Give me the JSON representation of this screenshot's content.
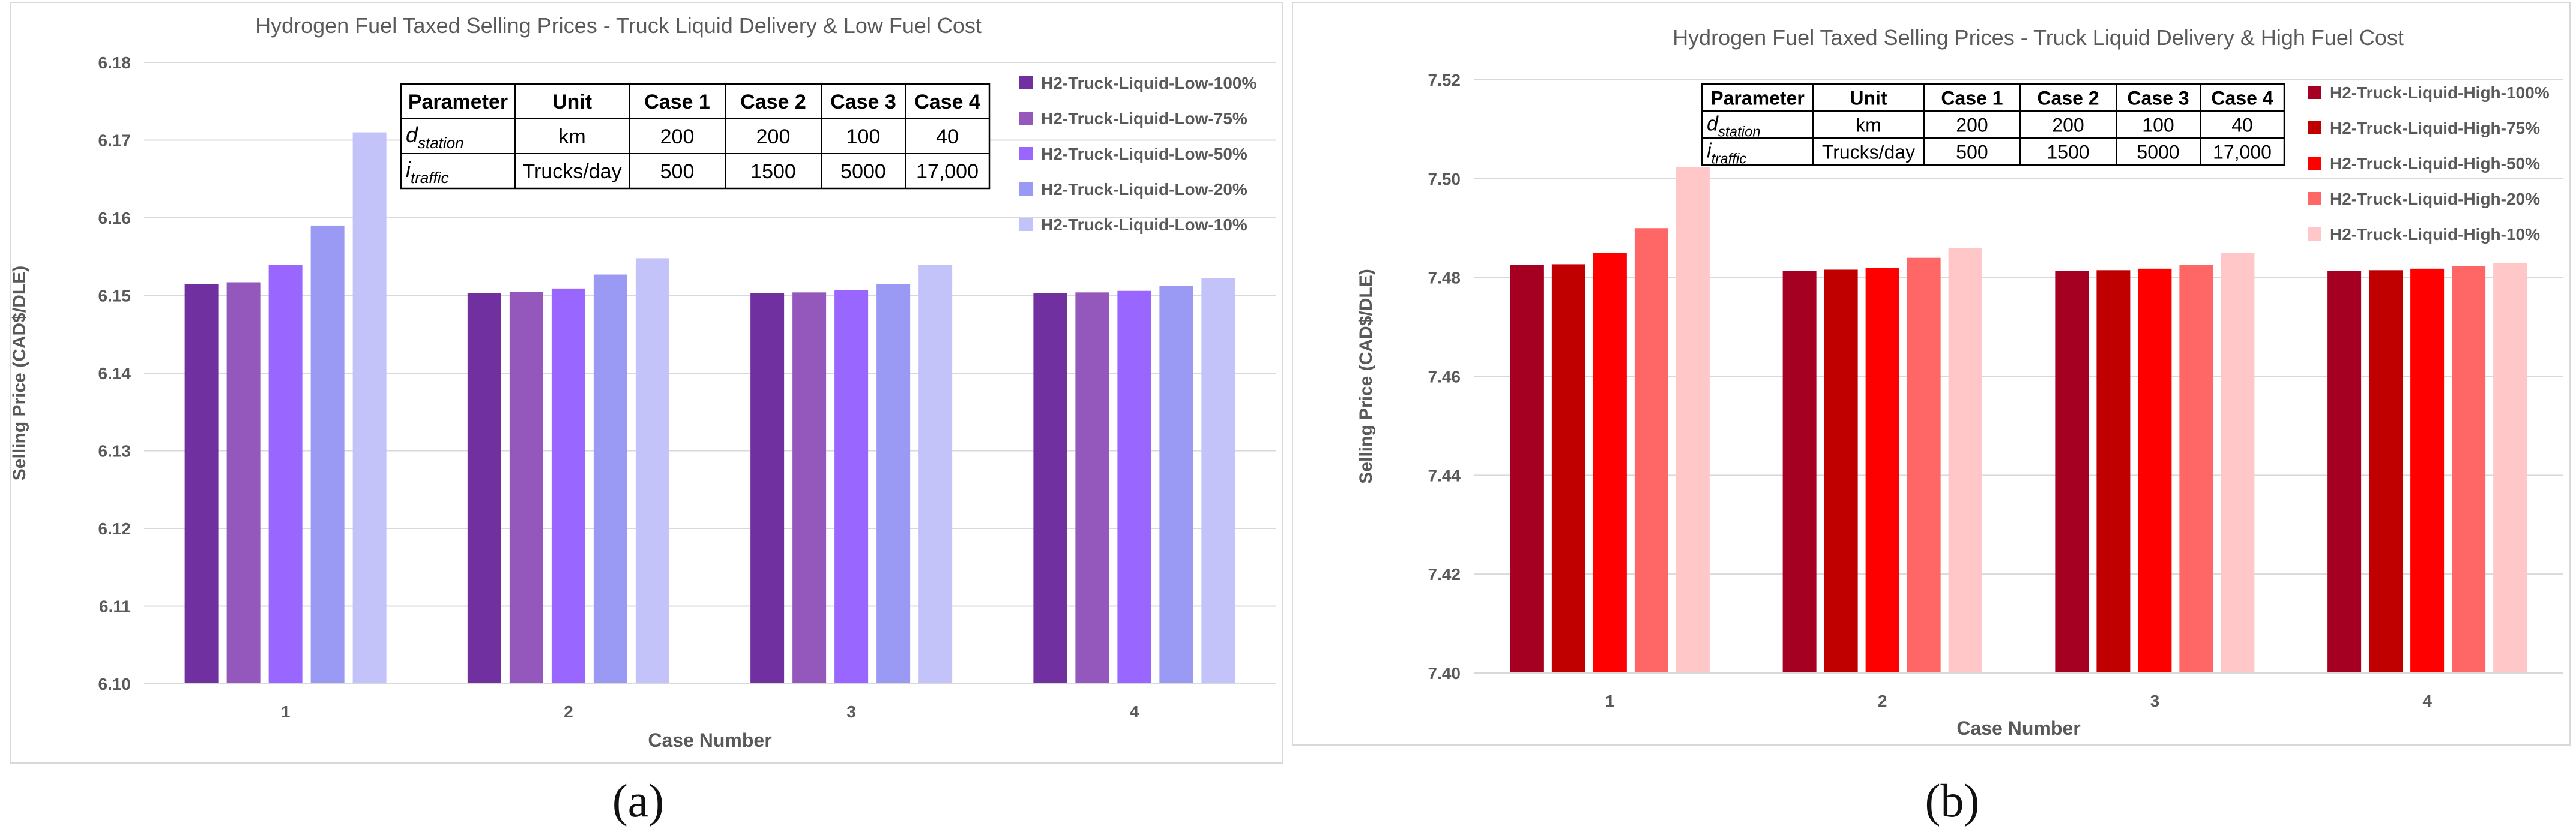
{
  "chart_data": [
    {
      "type": "bar",
      "title": "Hydrogen Fuel Taxed Selling Prices - Truck Liquid Delivery & Low Fuel Cost",
      "xlabel": "Case Number",
      "ylabel": "Selling Price (CAD$/DLE)",
      "categories": [
        "1",
        "2",
        "3",
        "4"
      ],
      "ylim": [
        6.1,
        6.18
      ],
      "yticks": [
        "6.10",
        "6.11",
        "6.12",
        "6.13",
        "6.14",
        "6.15",
        "6.16",
        "6.17",
        "6.18"
      ],
      "grid": true,
      "legend_position": "right",
      "panel_label": "(a)",
      "series": [
        {
          "name": "H2-Truck-Liquid-Low-100%",
          "color": "#7030a0",
          "values": [
            6.1515,
            6.1503,
            6.1503,
            6.1503
          ]
        },
        {
          "name": "H2-Truck-Liquid-Low-75%",
          "color": "#9458bd",
          "values": [
            6.1517,
            6.1505,
            6.1504,
            6.1504
          ]
        },
        {
          "name": "H2-Truck-Liquid-Low-50%",
          "color": "#9966ff",
          "values": [
            6.1539,
            6.1509,
            6.1507,
            6.1506
          ]
        },
        {
          "name": "H2-Truck-Liquid-Low-20%",
          "color": "#9a9af5",
          "values": [
            6.159,
            6.1527,
            6.1515,
            6.1512
          ]
        },
        {
          "name": "H2-Truck-Liquid-Low-10%",
          "color": "#c3c3fa",
          "values": [
            6.171,
            6.1548,
            6.1539,
            6.1522
          ]
        }
      ],
      "table": {
        "headers": [
          "Parameter",
          "Unit",
          "Case 1",
          "Case 2",
          "Case 3",
          "Case 4"
        ],
        "rows": [
          {
            "param": "d",
            "sub": "station",
            "cells": [
              "km",
              "200",
              "200",
              "100",
              "40"
            ]
          },
          {
            "param": "i",
            "sub": "traffic",
            "cells": [
              "Trucks/day",
              "500",
              "1500",
              "5000",
              "17,000"
            ]
          }
        ]
      }
    },
    {
      "type": "bar",
      "title": "Hydrogen Fuel Taxed Selling Prices - Truck Liquid Delivery & High Fuel Cost",
      "xlabel": "Case Number",
      "ylabel": "Selling Price (CAD$/DLE)",
      "categories": [
        "1",
        "2",
        "3",
        "4"
      ],
      "ylim": [
        7.4,
        7.52
      ],
      "yticks": [
        "7.40",
        "7.42",
        "7.44",
        "7.46",
        "7.48",
        "7.50",
        "7.52"
      ],
      "grid": true,
      "legend_position": "right",
      "panel_label": "(b)",
      "series": [
        {
          "name": "H2-Truck-Liquid-High-100%",
          "color": "#a50021",
          "values": [
            7.4826,
            7.4814,
            7.4814,
            7.4814
          ]
        },
        {
          "name": "H2-Truck-Liquid-High-75%",
          "color": "#c00000",
          "values": [
            7.4827,
            7.4816,
            7.4815,
            7.4815
          ]
        },
        {
          "name": "H2-Truck-Liquid-High-50%",
          "color": "#ff0000",
          "values": [
            7.485,
            7.482,
            7.4818,
            7.4818
          ]
        },
        {
          "name": "H2-Truck-Liquid-High-20%",
          "color": "#ff6666",
          "values": [
            7.49,
            7.484,
            7.4826,
            7.4823
          ]
        },
        {
          "name": "H2-Truck-Liquid-High-10%",
          "color": "#ffc7c7",
          "values": [
            7.5023,
            7.486,
            7.485,
            7.483
          ]
        }
      ],
      "table": {
        "headers": [
          "Parameter",
          "Unit",
          "Case 1",
          "Case 2",
          "Case 3",
          "Case 4"
        ],
        "rows": [
          {
            "param": "d",
            "sub": "station",
            "cells": [
              "km",
              "200",
              "200",
              "100",
              "40"
            ]
          },
          {
            "param": "i",
            "sub": "traffic",
            "cells": [
              "Trucks/day",
              "500",
              "1500",
              "5000",
              "17,000"
            ]
          }
        ]
      }
    }
  ]
}
